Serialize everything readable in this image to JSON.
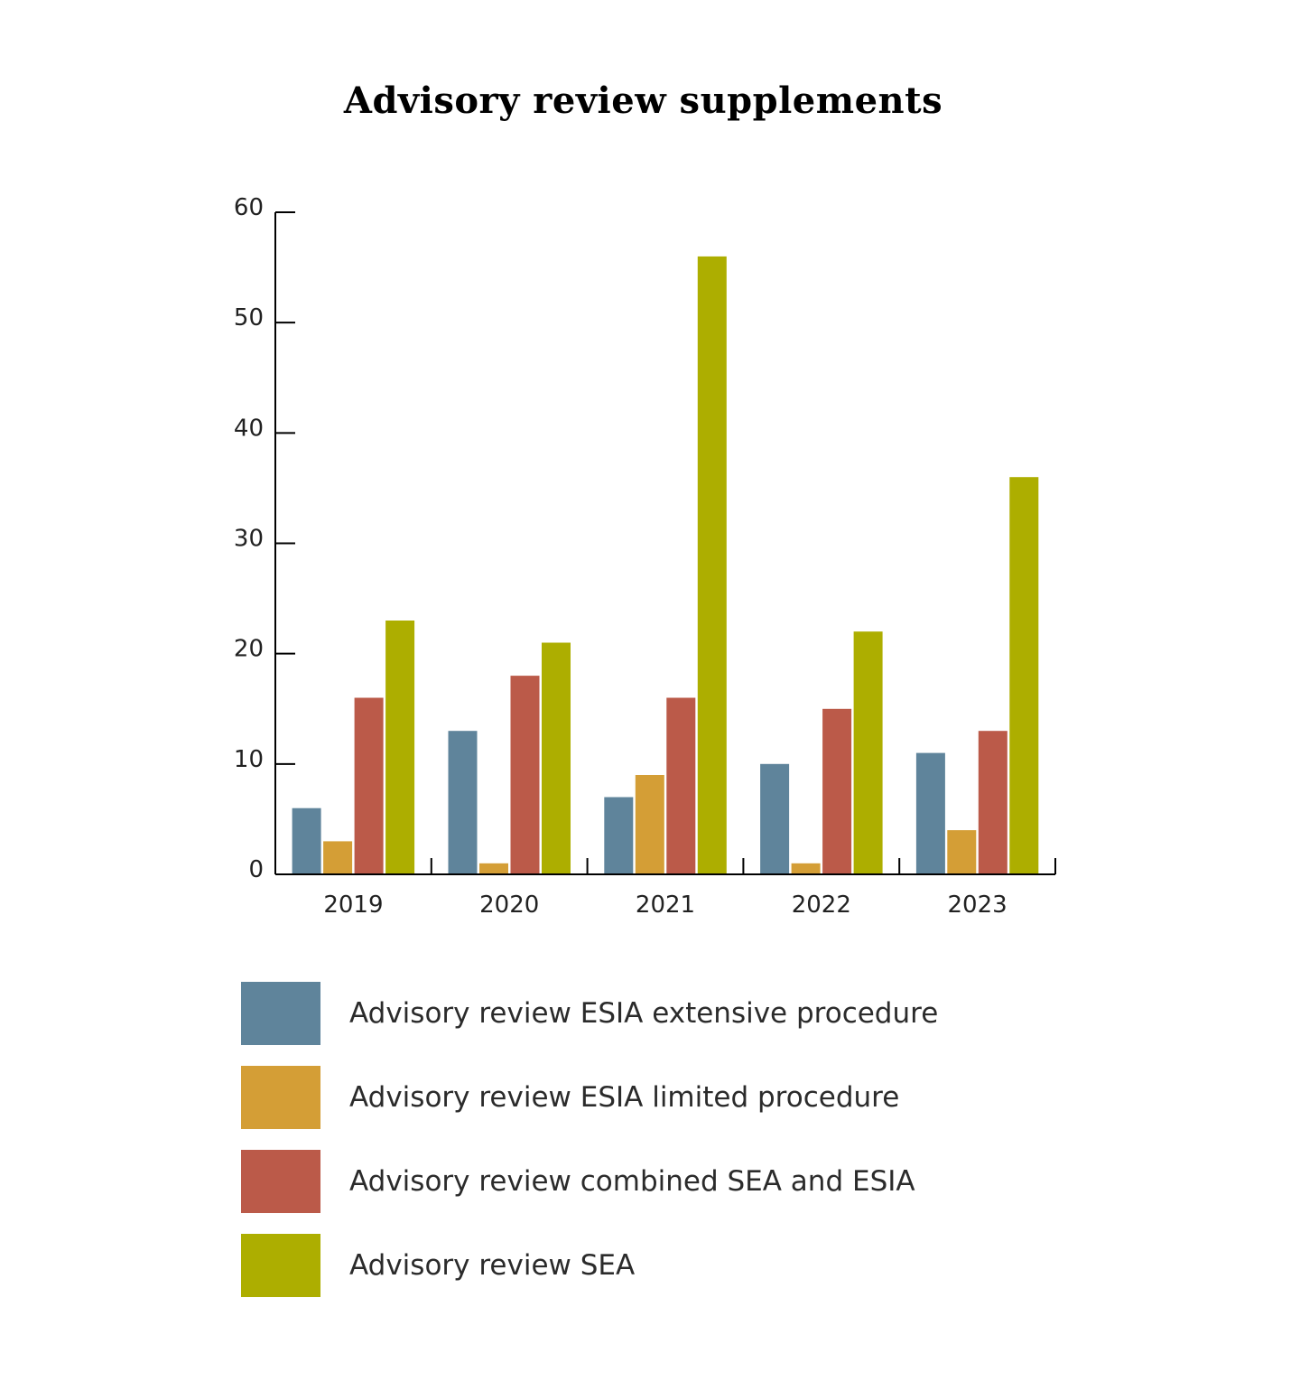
{
  "chart_data": {
    "type": "bar",
    "title": "Advisory review supplements",
    "categories": [
      "2019",
      "2020",
      "2021",
      "2022",
      "2023"
    ],
    "series": [
      {
        "name": "Advisory review ESIA extensive procedure",
        "color": "#5f849b",
        "values": [
          6,
          13,
          7,
          10,
          11
        ]
      },
      {
        "name": "Advisory review ESIA limited procedure",
        "color": "#d49e36",
        "values": [
          3,
          1,
          9,
          1,
          4
        ]
      },
      {
        "name": "Advisory review combined SEA and ESIA",
        "color": "#bb5a49",
        "values": [
          16,
          18,
          16,
          15,
          13
        ]
      },
      {
        "name": "Advisory review SEA",
        "color": "#adae00",
        "values": [
          23,
          21,
          56,
          22,
          36
        ]
      }
    ],
    "ylim": [
      0,
      60
    ],
    "yticks": [
      0,
      10,
      20,
      30,
      40,
      50,
      60
    ],
    "xlabel": "",
    "ylabel": "",
    "grid": false,
    "legend_position": "bottom"
  }
}
